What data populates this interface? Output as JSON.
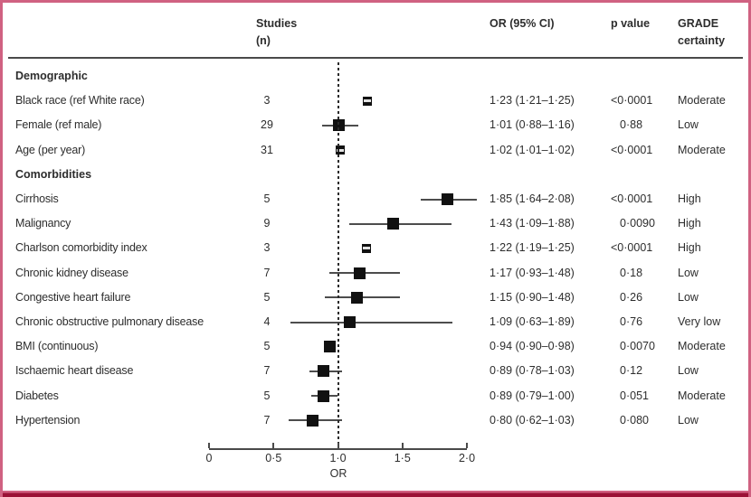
{
  "figure": {
    "border_color": "#d06181",
    "bottom_rule_color": "#9b1236",
    "text_color": "#2d2d2d",
    "marker_color": "#111111"
  },
  "header": {
    "studies_line1": "Studies",
    "studies_line2": "(n)",
    "or_ci": "OR (95% CI)",
    "p_value": "p value",
    "grade_line1": "GRADE",
    "grade_line2": "certainty"
  },
  "axis": {
    "label": "OR",
    "min": 0,
    "max": 2,
    "reference_value": 1.0,
    "ticks": [
      {
        "value": 0,
        "label": "0"
      },
      {
        "value": 0.5,
        "label": "0·5"
      },
      {
        "value": 1.0,
        "label": "1·0"
      },
      {
        "value": 1.5,
        "label": "1·5"
      },
      {
        "value": 2.0,
        "label": "2·0"
      }
    ]
  },
  "chart_data": {
    "type": "forest",
    "xlabel": "OR",
    "xlim": [
      0,
      2
    ],
    "reference_line": 1.0,
    "columns": [
      "Studies (n)",
      "OR (95% CI)",
      "p value",
      "GRADE certainty"
    ],
    "groups": [
      {
        "name": "Demographic",
        "rows": [
          {
            "label": "Black race (ref White race)",
            "studies": 3,
            "or": 1.23,
            "ci_low": 1.21,
            "ci_high": 1.25,
            "or_ci_text": "1·23 (1·21–1·25)",
            "p": "<0·0001",
            "grade": "Moderate",
            "narrow": true
          },
          {
            "label": "Female (ref male)",
            "studies": 29,
            "or": 1.01,
            "ci_low": 0.88,
            "ci_high": 1.16,
            "or_ci_text": "1·01 (0·88–1·16)",
            "p": "0·88",
            "grade": "Low",
            "narrow": false
          },
          {
            "label": "Age (per year)",
            "studies": 31,
            "or": 1.02,
            "ci_low": 1.01,
            "ci_high": 1.02,
            "or_ci_text": "1·02 (1·01–1·02)",
            "p": "<0·0001",
            "grade": "Moderate",
            "narrow": true
          }
        ]
      },
      {
        "name": "Comorbidities",
        "rows": [
          {
            "label": "Cirrhosis",
            "studies": 5,
            "or": 1.85,
            "ci_low": 1.64,
            "ci_high": 2.08,
            "or_ci_text": "1·85 (1·64–2·08)",
            "p": "<0·0001",
            "grade": "High",
            "narrow": false
          },
          {
            "label": "Malignancy",
            "studies": 9,
            "or": 1.43,
            "ci_low": 1.09,
            "ci_high": 1.88,
            "or_ci_text": "1·43 (1·09–1·88)",
            "p": "0·0090",
            "grade": "High",
            "narrow": false
          },
          {
            "label": "Charlson comorbidity index",
            "studies": 3,
            "or": 1.22,
            "ci_low": 1.19,
            "ci_high": 1.25,
            "or_ci_text": "1·22 (1·19–1·25)",
            "p": "<0·0001",
            "grade": "High",
            "narrow": true
          },
          {
            "label": "Chronic kidney disease",
            "studies": 7,
            "or": 1.17,
            "ci_low": 0.93,
            "ci_high": 1.48,
            "or_ci_text": "1·17 (0·93–1·48)",
            "p": "0·18",
            "grade": "Low",
            "narrow": false
          },
          {
            "label": "Congestive heart failure",
            "studies": 5,
            "or": 1.15,
            "ci_low": 0.9,
            "ci_high": 1.48,
            "or_ci_text": "1·15 (0·90–1·48)",
            "p": "0·26",
            "grade": "Low",
            "narrow": false
          },
          {
            "label": "Chronic obstructive pulmonary disease",
            "studies": 4,
            "or": 1.09,
            "ci_low": 0.63,
            "ci_high": 1.89,
            "or_ci_text": "1·09 (0·63–1·89)",
            "p": "0·76",
            "grade": "Very low",
            "narrow": false
          },
          {
            "label": "BMI (continuous)",
            "studies": 5,
            "or": 0.94,
            "ci_low": 0.9,
            "ci_high": 0.98,
            "or_ci_text": "0·94 (0·90–0·98)",
            "p": "0·0070",
            "grade": "Moderate",
            "narrow": false
          },
          {
            "label": "Ischaemic heart disease",
            "studies": 7,
            "or": 0.89,
            "ci_low": 0.78,
            "ci_high": 1.03,
            "or_ci_text": "0·89 (0·78–1·03)",
            "p": "0·12",
            "grade": "Low",
            "narrow": false
          },
          {
            "label": "Diabetes",
            "studies": 5,
            "or": 0.89,
            "ci_low": 0.79,
            "ci_high": 1.0,
            "or_ci_text": "0·89 (0·79–1·00)",
            "p": "0·051",
            "grade": "Moderate",
            "narrow": false
          },
          {
            "label": "Hypertension",
            "studies": 7,
            "or": 0.8,
            "ci_low": 0.62,
            "ci_high": 1.03,
            "or_ci_text": "0·80 (0·62–1·03)",
            "p": "0·080",
            "grade": "Low",
            "narrow": false
          }
        ]
      }
    ]
  }
}
